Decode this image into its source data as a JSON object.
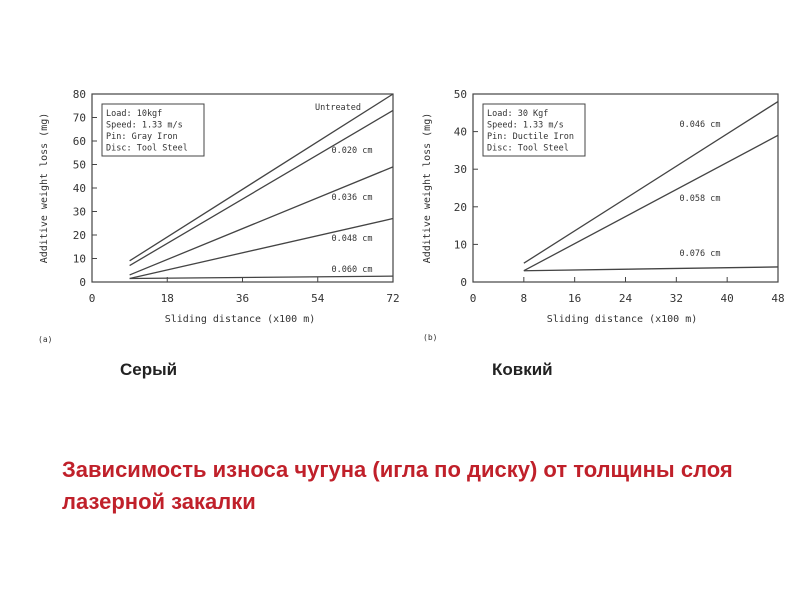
{
  "chart_data": [
    {
      "type": "line",
      "panel_label": "(a)",
      "xlabel": "Sliding distance (x100 m)",
      "ylabel": "Additive weight loss (mg)",
      "xlim": [
        0,
        72
      ],
      "ylim": [
        0,
        80
      ],
      "xticks": [
        0,
        18,
        36,
        54,
        72
      ],
      "yticks": [
        0,
        10,
        20,
        30,
        40,
        50,
        60,
        70,
        80
      ],
      "grid": false,
      "conditions": [
        "Load: 10kgf",
        "Speed: 1.33 m/s",
        "Pin: Gray Iron",
        "Disc: Tool Steel"
      ],
      "series": [
        {
          "name": "Untreated",
          "x": [
            9,
            72
          ],
          "y": [
            9,
            80
          ]
        },
        {
          "name": "0.020 cm",
          "x": [
            9,
            72
          ],
          "y": [
            7,
            73
          ]
        },
        {
          "name": "0.036 cm",
          "x": [
            9,
            72
          ],
          "y": [
            3,
            49
          ]
        },
        {
          "name": "0.048 cm",
          "x": [
            9,
            72
          ],
          "y": [
            1.5,
            27
          ]
        },
        {
          "name": "0.060 cm",
          "x": [
            9,
            72
          ],
          "y": [
            1.5,
            2.5
          ]
        }
      ]
    },
    {
      "type": "line",
      "panel_label": "(b)",
      "xlabel": "Sliding distance (x100 m)",
      "ylabel": "Additive weight loss (mg)",
      "xlim": [
        0,
        48
      ],
      "ylim": [
        0,
        50
      ],
      "xticks": [
        0,
        8,
        16,
        24,
        32,
        40,
        48
      ],
      "yticks": [
        0,
        10,
        20,
        30,
        40,
        50
      ],
      "grid": false,
      "conditions": [
        "Load: 30 Kgf",
        "Speed: 1.33 m/s",
        "Pin: Ductile Iron",
        "Disc: Tool Steel"
      ],
      "series": [
        {
          "name": "0.046 cm",
          "x": [
            8,
            48
          ],
          "y": [
            5,
            48
          ]
        },
        {
          "name": "0.058 cm",
          "x": [
            8,
            48
          ],
          "y": [
            3,
            39
          ]
        },
        {
          "name": "0.076 cm",
          "x": [
            8,
            48
          ],
          "y": [
            3,
            4
          ]
        }
      ]
    }
  ],
  "captions": {
    "left": "Серый",
    "right": "Ковкий"
  },
  "title": "Зависимость износа чугуна (игла по диску)  от толщины слоя лазерной закалки"
}
